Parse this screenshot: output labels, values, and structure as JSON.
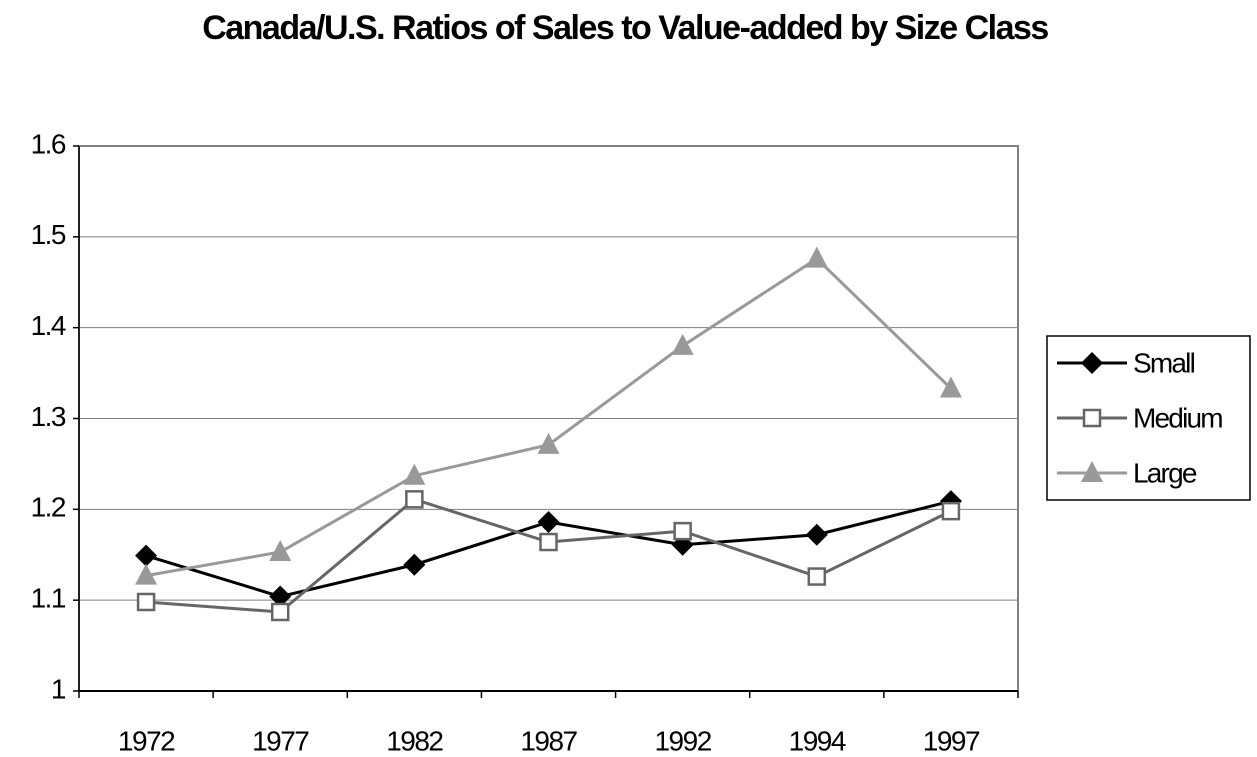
{
  "chart_data": {
    "type": "line",
    "title": "Canada/U.S. Ratios of Sales to Value-added by Size Class",
    "categories": [
      "1972",
      "1977",
      "1982",
      "1987",
      "1992",
      "1994",
      "1997"
    ],
    "series": [
      {
        "name": "Small",
        "color": "#000000",
        "marker": "diamond",
        "values": [
          1.149,
          1.104,
          1.139,
          1.186,
          1.161,
          1.172,
          1.209
        ]
      },
      {
        "name": "Medium",
        "color": "#666666",
        "marker": "square",
        "values": [
          1.098,
          1.087,
          1.211,
          1.164,
          1.176,
          1.126,
          1.198
        ]
      },
      {
        "name": "Large",
        "color": "#999999",
        "marker": "triangle",
        "values": [
          1.127,
          1.153,
          1.237,
          1.271,
          1.38,
          1.476,
          1.333
        ]
      }
    ],
    "ylim": [
      1,
      1.6
    ],
    "yticks": [
      1,
      1.1,
      1.2,
      1.3,
      1.4,
      1.5,
      1.6
    ],
    "grid": true,
    "legend": "right"
  }
}
